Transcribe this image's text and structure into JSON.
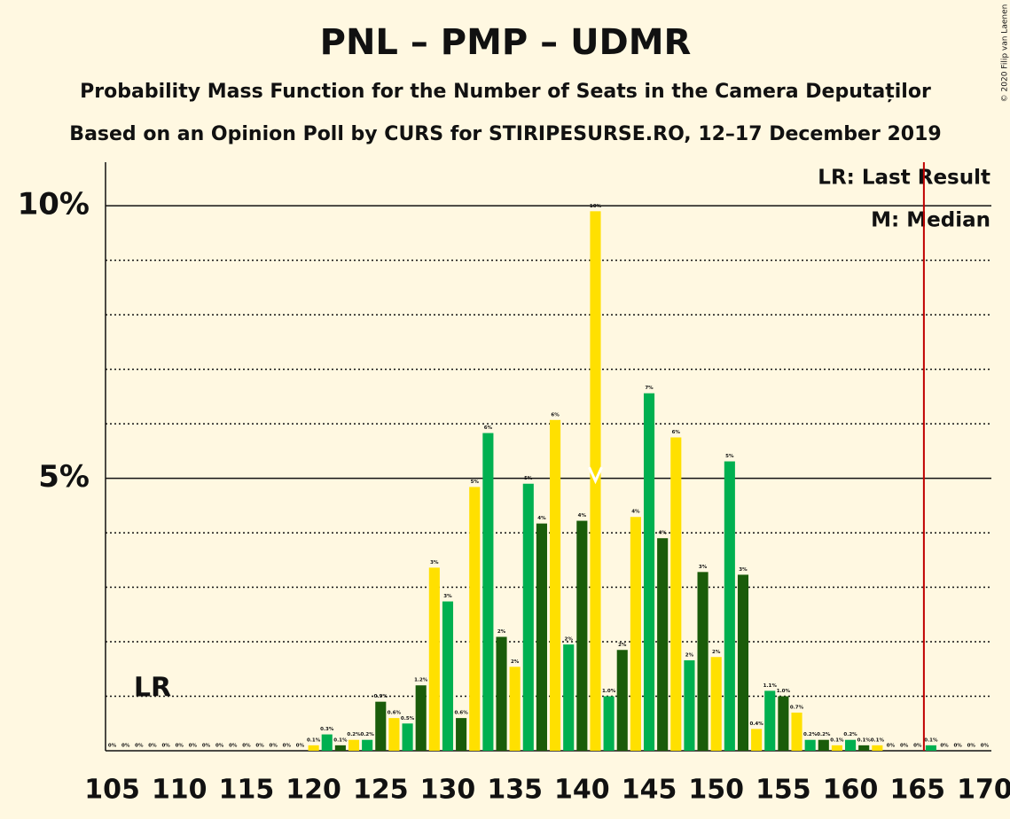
{
  "chart_data": {
    "type": "bar",
    "title": "PNL – PMP – UDMR",
    "subtitle": "Probability Mass Function for the Number of Seats in the Camera Deputaților",
    "subtitle2": "Based on an Opinion Poll by CURS for STIRIPESURSE.RO, 12–17 December 2019",
    "copyright": "© 2020 Filip van Laenen",
    "legend_lr": "LR: Last Result",
    "legend_median": "M: Median",
    "lr_label": "LR",
    "last_result": 166,
    "median": 141,
    "categories": [
      105,
      null,
      null,
      null,
      null,
      110,
      null,
      null,
      null,
      null,
      115,
      null,
      null,
      null,
      null,
      120,
      null,
      null,
      null,
      null,
      125,
      null,
      null,
      null,
      null,
      130,
      null,
      null,
      null,
      null,
      135,
      null,
      null,
      null,
      null,
      140,
      null,
      null,
      null,
      null,
      145,
      null,
      null,
      null,
      null,
      150,
      null,
      null,
      null,
      null,
      155,
      null,
      null,
      null,
      null,
      160,
      null,
      null,
      null,
      null,
      165,
      null,
      null,
      null,
      null,
      170
    ],
    "values": [
      0,
      0,
      0,
      0,
      0,
      0,
      0,
      0,
      0,
      0,
      0,
      0,
      0,
      0,
      0,
      0.1,
      0.3,
      0.1,
      0.2,
      0.2,
      0.9,
      0.6,
      0.5,
      1.2,
      3.36,
      2.74,
      0.6,
      4.84,
      5.83,
      2.09,
      1.54,
      4.9,
      4.17,
      6.07,
      1.95,
      4.22,
      9.9,
      1.0,
      1.85,
      4.29,
      6.56,
      3.9,
      5.75,
      1.66,
      3.28,
      1.72,
      5.31,
      3.23,
      0.4,
      1.1,
      1.0,
      0.7,
      0.2,
      0.2,
      0.1,
      0.2,
      0.1,
      0.1,
      0,
      0,
      0,
      0.1,
      0,
      0,
      0,
      0
    ],
    "value_labels": [
      "0%",
      "0%",
      "0%",
      "0%",
      "0%",
      "0%",
      "0%",
      "0%",
      "0%",
      "0%",
      "0%",
      "0%",
      "0%",
      "0%",
      "0%",
      "0.1%",
      "0.3%",
      "0.1%",
      "0.2%",
      "0.2%",
      "0.9%",
      "0.6%",
      "0.5%",
      "1.2%",
      "3%",
      "3%",
      "0.6%",
      "5%",
      "6%",
      "2%",
      "2%",
      "5%",
      "4%",
      "6%",
      "2%",
      "4%",
      "10%",
      "1.0%",
      "2%",
      "4%",
      "7%",
      "4%",
      "6%",
      "2%",
      "3%",
      "2%",
      "5%",
      "3%",
      "0.4%",
      "1.1%",
      "1.0%",
      "0.7%",
      "0.2%",
      "0.2%",
      "0.1%",
      "0.2%",
      "0.1%",
      "0.1%",
      "0%",
      "0%",
      "0%",
      "0.1%",
      "0%",
      "0%",
      "0%",
      "0%"
    ],
    "colors": [
      "#ffe000",
      "#00b050",
      "#1a5c0a"
    ],
    "ylim": [
      0,
      10.8
    ],
    "yticks": [
      {
        "value": 5,
        "label": "5%"
      },
      {
        "value": 10,
        "label": "10%"
      }
    ],
    "minor_yticks": [
      1,
      2,
      3,
      4,
      6,
      7,
      8,
      9
    ],
    "lr_color": "#c00000",
    "grid": true
  }
}
